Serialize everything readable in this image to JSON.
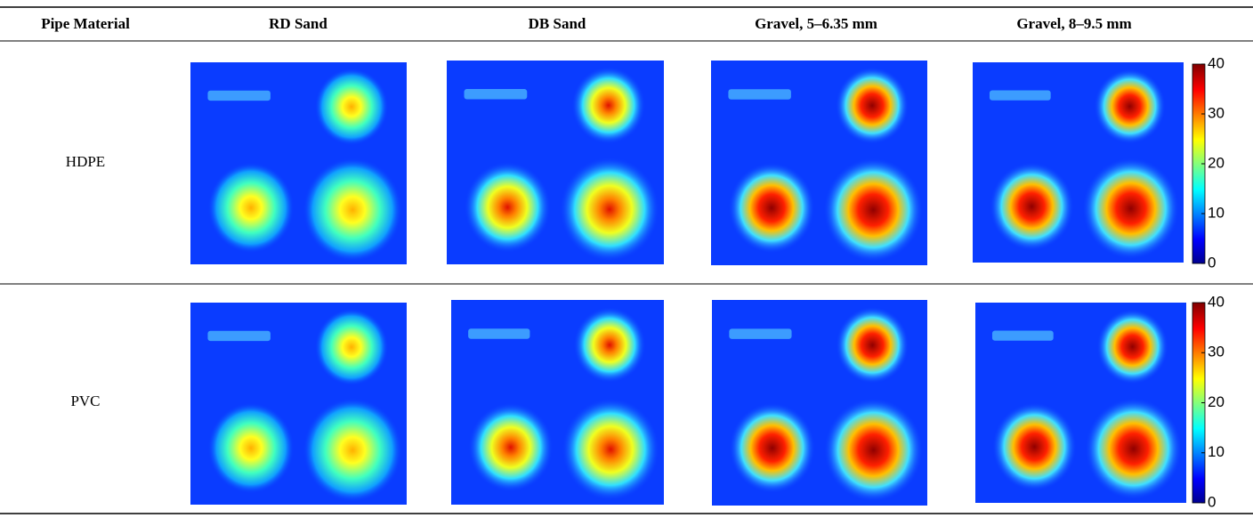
{
  "table": {
    "header": [
      "Pipe Material",
      "RD Sand",
      "DB Sand",
      "Gravel, 5–6.35 mm",
      "Gravel, 8–9.5 mm"
    ],
    "rows": [
      {
        "label": "HDPE",
        "colorbar": {
          "lim": [
            0,
            40
          ],
          "ticks": [
            0,
            10,
            20,
            30,
            40
          ]
        }
      },
      {
        "label": "PVC",
        "colorbar": {
          "lim": [
            0,
            40
          ],
          "ticks": [
            0,
            10,
            20,
            30,
            40
          ]
        }
      }
    ]
  }
}
